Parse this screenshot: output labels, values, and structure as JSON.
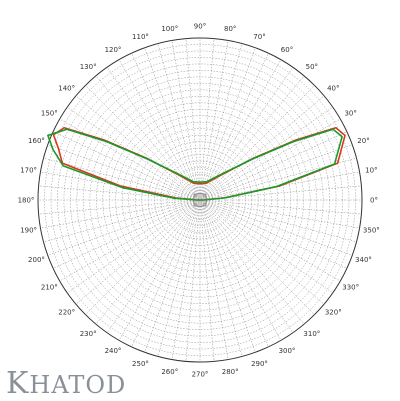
{
  "brand": {
    "name": "KHATOD",
    "first": "K",
    "rest": "HATOD"
  },
  "chart_data": {
    "type": "polar",
    "title": "",
    "angle_unit": "deg",
    "angle_zero": "right",
    "angle_direction": "counterclockwise",
    "angular_ticks": [
      0,
      10,
      20,
      30,
      40,
      50,
      60,
      70,
      80,
      90,
      100,
      110,
      120,
      130,
      140,
      150,
      160,
      170,
      180,
      190,
      200,
      210,
      220,
      230,
      240,
      250,
      260,
      270,
      280,
      290,
      300,
      310,
      320,
      330,
      340,
      350
    ],
    "tick_suffix": "°",
    "radial_range": [
      0,
      1
    ],
    "radial_rings": 25,
    "spoke_step_deg": 5,
    "grid": true,
    "colors": {
      "grid": "#8c8c8c",
      "outer": "#333333",
      "series_red": "#d9381e",
      "series_green": "#1a9a28"
    },
    "series": [
      {
        "color_key": "series_red",
        "points": [
          [
            0,
            0.02
          ],
          [
            5,
            0.15
          ],
          [
            10,
            0.5
          ],
          [
            15,
            0.88
          ],
          [
            20,
            0.93
          ],
          [
            24,
            0.98
          ],
          [
            28,
            0.95
          ],
          [
            32,
            0.7
          ],
          [
            38,
            0.42
          ],
          [
            50,
            0.2
          ],
          [
            70,
            0.11
          ],
          [
            90,
            0.1
          ],
          [
            110,
            0.11
          ],
          [
            130,
            0.2
          ],
          [
            142,
            0.42
          ],
          [
            148,
            0.7
          ],
          [
            152,
            0.95
          ],
          [
            156,
            0.99
          ],
          [
            160,
            0.93
          ],
          [
            165,
            0.88
          ],
          [
            170,
            0.5
          ],
          [
            175,
            0.15
          ],
          [
            180,
            0.02
          ]
        ]
      },
      {
        "color_key": "series_green",
        "points": [
          [
            0,
            0.02
          ],
          [
            5,
            0.16
          ],
          [
            10,
            0.48
          ],
          [
            15,
            0.86
          ],
          [
            20,
            0.91
          ],
          [
            24,
            0.96
          ],
          [
            28,
            0.93
          ],
          [
            32,
            0.68
          ],
          [
            38,
            0.41
          ],
          [
            50,
            0.21
          ],
          [
            70,
            0.12
          ],
          [
            90,
            0.11
          ],
          [
            110,
            0.12
          ],
          [
            130,
            0.21
          ],
          [
            142,
            0.41
          ],
          [
            148,
            0.68
          ],
          [
            152,
            0.93
          ],
          [
            157,
            1.02
          ],
          [
            161,
            0.96
          ],
          [
            166,
            0.87
          ],
          [
            171,
            0.48
          ],
          [
            176,
            0.16
          ],
          [
            180,
            0.02
          ]
        ]
      }
    ]
  }
}
